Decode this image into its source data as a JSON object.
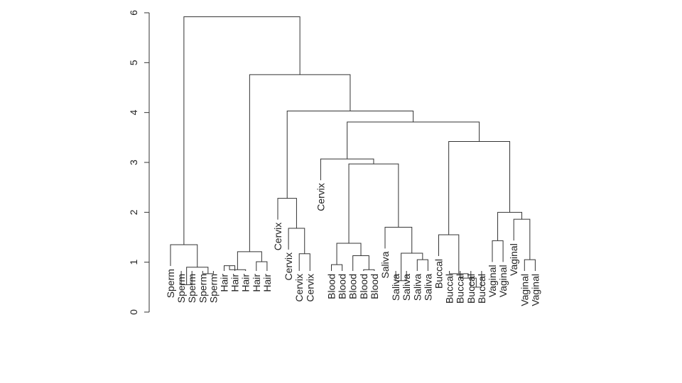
{
  "chart_data": {
    "type": "dendrogram",
    "title": "",
    "xlabel": "",
    "ylabel": "",
    "ylim": [
      0,
      6
    ],
    "yticks": [
      "0",
      "1",
      "2",
      "3",
      "4",
      "5",
      "6"
    ],
    "grid": false,
    "legend": "none",
    "line_color": "#333333",
    "leaves": [
      "Sperm",
      "Sperm",
      "Sperm",
      "Sperm",
      "Sperm",
      "Hair",
      "Hair",
      "Hair",
      "Hair",
      "Hair",
      "Cervix",
      "Cervix",
      "Cervix",
      "Cervix",
      "Cervix",
      "Blood",
      "Blood",
      "Blood",
      "Blood",
      "Blood",
      "Saliva",
      "Saliva",
      "Saliva",
      "Saliva",
      "Saliva",
      "Buccal",
      "Buccal",
      "Buccal",
      "Buccal",
      "Buccal",
      "Vaginal",
      "Vaginal",
      "Vaginal",
      "Vaginal",
      "Vaginal"
    ],
    "merges": [
      {
        "a": "L1",
        "b": "L2",
        "height": 0.55
      },
      {
        "a": "L3",
        "b": "L4",
        "height": 0.77
      },
      {
        "a": "M1",
        "b": "M2",
        "height": 0.9
      },
      {
        "a": "L0",
        "b": "M3",
        "height": 1.35
      },
      {
        "a": "L5",
        "b": "L6",
        "height": 0.93
      },
      {
        "a": "M5",
        "b": "L7",
        "height": 0.85
      },
      {
        "a": "L8",
        "b": "L9",
        "height": 1.01
      },
      {
        "a": "M6",
        "b": "M7",
        "height": 1.21
      },
      {
        "a": "L12",
        "b": "L13",
        "height": 1.17
      },
      {
        "a": "L11",
        "b": "M9",
        "height": 1.68
      },
      {
        "a": "L10",
        "b": "M10",
        "height": 2.28
      },
      {
        "a": "L15",
        "b": "L16",
        "height": 0.95
      },
      {
        "a": "L18",
        "b": "L19",
        "height": 0.85
      },
      {
        "a": "L17",
        "b": "M13",
        "height": 1.13
      },
      {
        "a": "M12",
        "b": "M14",
        "height": 1.38
      },
      {
        "a": "L21",
        "b": "L22",
        "height": 0.63
      },
      {
        "a": "L23",
        "b": "L24",
        "height": 1.05
      },
      {
        "a": "M16",
        "b": "M17",
        "height": 1.18
      },
      {
        "a": "L20",
        "b": "M18",
        "height": 1.7
      },
      {
        "a": "M15",
        "b": "M19",
        "height": 2.97
      },
      {
        "a": "L14",
        "b": "M20",
        "height": 3.07
      },
      {
        "a": "L28",
        "b": "L29",
        "height": 0.5
      },
      {
        "a": "L27",
        "b": "M22",
        "height": 0.68
      },
      {
        "a": "L26",
        "b": "M23",
        "height": 0.77
      },
      {
        "a": "L25",
        "b": "M24",
        "height": 1.55
      },
      {
        "a": "L30",
        "b": "L31",
        "height": 1.43
      },
      {
        "a": "L33",
        "b": "L34",
        "height": 1.05
      },
      {
        "a": "L32",
        "b": "M27",
        "height": 1.86
      },
      {
        "a": "M26",
        "b": "M28",
        "height": 2.0
      },
      {
        "a": "M25",
        "b": "M29",
        "height": 3.42
      },
      {
        "a": "M21",
        "b": "M30",
        "height": 3.81
      },
      {
        "a": "M11",
        "b": "M31",
        "height": 4.03
      },
      {
        "a": "M8",
        "b": "M32",
        "height": 4.76
      },
      {
        "a": "M4",
        "b": "M33",
        "height": 5.92
      }
    ]
  }
}
